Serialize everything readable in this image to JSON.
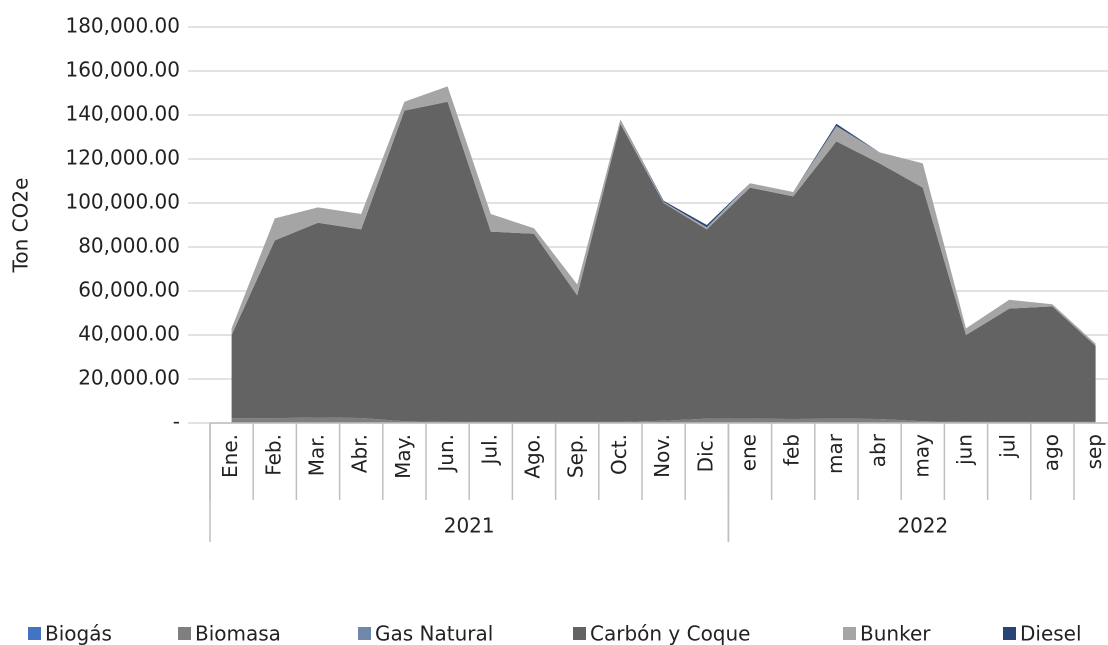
{
  "chart_data": {
    "type": "stacked_area",
    "y_label": "Ton CO2e",
    "categories": [
      "Ene.",
      "Feb.",
      "Mar.",
      "Abr.",
      "May.",
      "Jun.",
      "Jul.",
      "Ago.",
      "Sep.",
      "Oct.",
      "Nov.",
      "Dic.",
      "ene",
      "feb",
      "mar",
      "abr",
      "may",
      "jun",
      "jul",
      "ago",
      "sep"
    ],
    "x_groups": [
      {
        "name": "2021",
        "count": 12
      },
      {
        "name": "2022",
        "count": 9
      }
    ],
    "series": [
      {
        "name": "Biogás",
        "color": "#4472c4",
        "values": [
          0,
          0,
          0,
          0,
          0,
          0,
          0,
          0,
          0,
          0,
          0,
          0,
          0,
          0,
          0,
          0,
          0,
          0,
          0,
          0,
          0
        ]
      },
      {
        "name": "Biomasa",
        "color": "#7f7f7f",
        "values": [
          2200,
          2200,
          2500,
          2300,
          800,
          500,
          500,
          500,
          500,
          500,
          1000,
          2000,
          2000,
          1800,
          2000,
          1800,
          800,
          500,
          500,
          500,
          500
        ]
      },
      {
        "name": "Gas Natural",
        "color": "#6f87a8",
        "values": [
          0,
          0,
          0,
          0,
          0,
          0,
          0,
          0,
          0,
          0,
          0,
          0,
          0,
          0,
          0,
          0,
          0,
          0,
          0,
          0,
          0
        ]
      },
      {
        "name": "Carbón y Coque",
        "color": "#636363",
        "values": [
          37800,
          80800,
          88500,
          85700,
          141200,
          145500,
          86500,
          85500,
          57500,
          135500,
          99000,
          86000,
          105000,
          101200,
          126000,
          116200,
          106200,
          39500,
          51500,
          52500,
          34500
        ]
      },
      {
        "name": "Bunker",
        "color": "#a5a5a5",
        "values": [
          3000,
          10000,
          7000,
          7000,
          4000,
          7000,
          8000,
          2500,
          5000,
          2000,
          500,
          1000,
          2000,
          2000,
          7000,
          5000,
          11000,
          3000,
          4000,
          1000,
          1000
        ]
      },
      {
        "name": "Diesel",
        "color": "#264478",
        "values": [
          0,
          0,
          0,
          0,
          0,
          0,
          0,
          0,
          0,
          0,
          500,
          1000,
          0,
          0,
          1000,
          0,
          0,
          0,
          0,
          0,
          0
        ]
      }
    ],
    "ylim": [
      0,
      180000
    ],
    "yticks": [
      {
        "value": 0,
        "label": "-"
      },
      {
        "value": 20000,
        "label": "20,000.00"
      },
      {
        "value": 40000,
        "label": "40,000.00"
      },
      {
        "value": 60000,
        "label": "60,000.00"
      },
      {
        "value": 80000,
        "label": "80,000.00"
      },
      {
        "value": 100000,
        "label": "100,000.00"
      },
      {
        "value": 120000,
        "label": "120,000.00"
      },
      {
        "value": 140000,
        "label": "140,000.00"
      },
      {
        "value": 160000,
        "label": "160,000.00"
      },
      {
        "value": 180000,
        "label": "180,000.00"
      }
    ],
    "grid": true,
    "legend": "bottom"
  }
}
